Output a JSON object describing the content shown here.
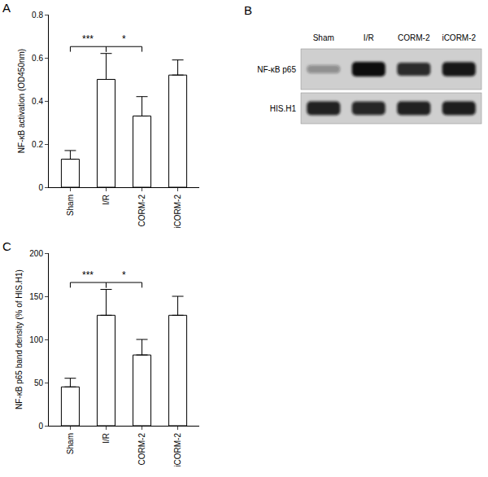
{
  "chart_data": [
    {
      "type": "bar",
      "title": "A",
      "y_label": "NF-κB activation (OD450nm)",
      "categories": [
        "Sham",
        "I/R",
        "CORM-2",
        "iCORM-2"
      ],
      "values": [
        0.13,
        0.5,
        0.33,
        0.52
      ],
      "errors": [
        0.04,
        0.12,
        0.09,
        0.07
      ],
      "color": "#ffffff",
      "ylim": [
        0,
        0.8
      ],
      "yticks": [
        0,
        0.2,
        0.4,
        0.6,
        0.8
      ],
      "grid": false,
      "annotations": [
        {
          "from": "Sham",
          "to": "I/R",
          "text": "***"
        },
        {
          "from": "I/R",
          "to": "CORM-2",
          "text": "*"
        }
      ]
    },
    {
      "type": "bar",
      "title": "C",
      "y_label": "NF-κB p65 band density (% of HIS.H1)",
      "categories": [
        "Sham",
        "I/R",
        "CORM-2",
        "iCORM-2"
      ],
      "values": [
        45,
        128,
        82,
        128
      ],
      "errors": [
        10,
        30,
        18,
        22
      ],
      "color": "#ffffff",
      "ylim": [
        0,
        200
      ],
      "yticks": [
        0,
        50,
        100,
        150,
        200
      ],
      "grid": false,
      "annotations": [
        {
          "from": "Sham",
          "to": "I/R",
          "text": "***"
        },
        {
          "from": "I/R",
          "to": "CORM-2",
          "text": "*"
        }
      ]
    }
  ],
  "blot": {
    "title": "B",
    "lanes": [
      "Sham",
      "I/R",
      "CORM-2",
      "iCORM-2"
    ],
    "rows": [
      {
        "label": "NF-κB p65",
        "intensity": [
          0.35,
          1.0,
          0.85,
          0.95
        ]
      },
      {
        "label": "HIS.H1",
        "intensity": [
          0.9,
          0.88,
          0.9,
          0.92
        ]
      }
    ]
  }
}
